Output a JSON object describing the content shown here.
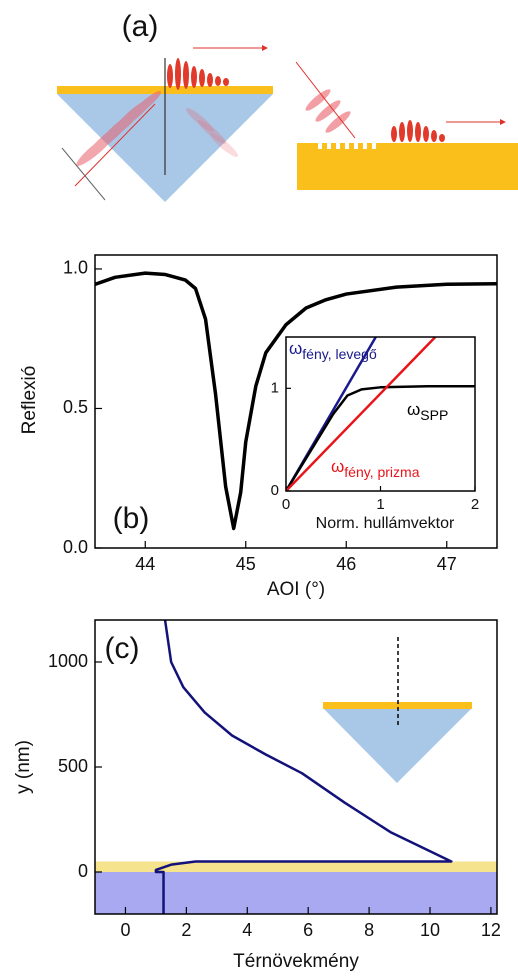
{
  "panel_a": {
    "label": "(a)"
  },
  "chart_data": [
    {
      "type": "line",
      "panel_label": "(b)",
      "xlabel": "AOI (°)",
      "ylabel": "Reflexió",
      "xlim": [
        43.5,
        47.5
      ],
      "xticks": [
        44,
        45,
        46,
        47
      ],
      "ylim": [
        0,
        1.05
      ],
      "yticks": [
        {
          "value": 0,
          "label": "0.0"
        },
        {
          "value": 0.5,
          "label": "0.5"
        },
        {
          "value": 1,
          "label": "1.0"
        }
      ],
      "color": "#000000",
      "x": [
        43.5,
        43.7,
        44.0,
        44.2,
        44.4,
        44.5,
        44.6,
        44.7,
        44.8,
        44.88,
        44.95,
        45.0,
        45.1,
        45.2,
        45.4,
        45.6,
        45.8,
        46.0,
        46.5,
        47.0,
        47.5
      ],
      "values": [
        0.945,
        0.97,
        0.985,
        0.98,
        0.96,
        0.93,
        0.82,
        0.55,
        0.22,
        0.07,
        0.2,
        0.38,
        0.58,
        0.7,
        0.8,
        0.86,
        0.89,
        0.91,
        0.935,
        0.945,
        0.947
      ]
    },
    {
      "type": "line",
      "xlabel": "Norm. hullámvektor",
      "xlim": [
        0,
        2
      ],
      "xticks": [
        0,
        1,
        2
      ],
      "ylim": [
        0,
        1.5
      ],
      "yticks": [
        0,
        1
      ],
      "series": [
        {
          "symbol": "ω",
          "subscript": "fény, levegő",
          "color": "#1a1a8c",
          "x": [
            0,
            0.95
          ],
          "values": [
            0,
            1.5
          ]
        },
        {
          "symbol": "ω",
          "subscript": "SPP",
          "color": "#000000",
          "x": [
            0,
            0.3,
            0.5,
            0.65,
            0.8,
            1.0,
            1.5,
            2.0
          ],
          "values": [
            0,
            0.45,
            0.75,
            0.93,
            0.99,
            1.01,
            1.02,
            1.02
          ]
        },
        {
          "symbol": "ω",
          "subscript": "fény, prizma",
          "color": "#e8141a",
          "x": [
            0,
            1.58
          ],
          "values": [
            0,
            1.5
          ]
        }
      ]
    },
    {
      "type": "line",
      "panel_label": "(c)",
      "xlabel": "Térnövekmény",
      "ylabel": "y (nm)",
      "xlim": [
        -1,
        12.2
      ],
      "xticks": [
        0,
        2,
        4,
        6,
        8,
        10,
        12
      ],
      "ylim": [
        -200,
        1200
      ],
      "yticks": [
        0,
        500,
        1000
      ],
      "bands": [
        {
          "y": [
            0,
            50
          ],
          "color": "#f6e38e"
        },
        {
          "y": [
            -200,
            0
          ],
          "color": "#a9a9f2"
        }
      ],
      "series": [
        {
          "color": "#12127a",
          "x": [
            1.3,
            1.5,
            1.9,
            2.6,
            3.5,
            4.6,
            5.8,
            7.2,
            8.7,
            10.7,
            2.3,
            1.5,
            1.0,
            1.0,
            1.25,
            1.25
          ],
          "values": [
            1200,
            1000,
            880,
            760,
            650,
            560,
            470,
            330,
            190,
            50,
            50,
            35,
            10,
            0,
            0,
            -200
          ]
        }
      ]
    }
  ]
}
